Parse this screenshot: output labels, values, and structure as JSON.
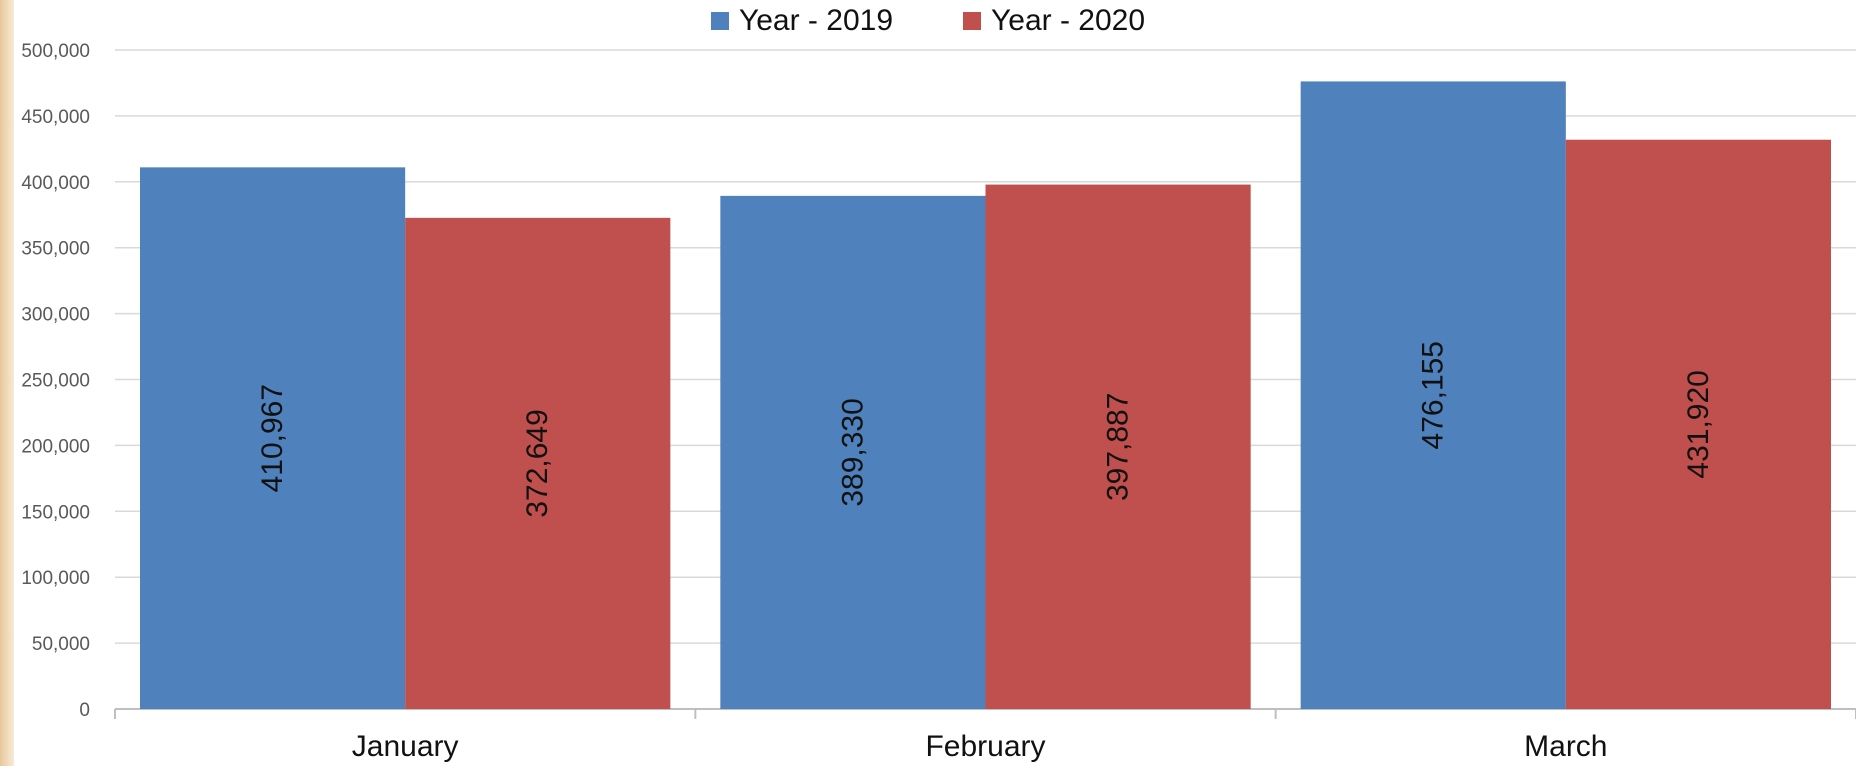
{
  "chart_data": {
    "type": "bar",
    "categories": [
      "January",
      "February",
      "March"
    ],
    "series": [
      {
        "name": "Year - 2019",
        "values": [
          410967,
          389330,
          476155
        ],
        "labels": [
          "410,967",
          "389,330",
          "476,155"
        ],
        "color": "#4f81bd"
      },
      {
        "name": "Year - 2020",
        "values": [
          372649,
          397887,
          431920
        ],
        "labels": [
          "372,649",
          "397,887",
          "431,920"
        ],
        "color": "#c0504d"
      }
    ],
    "ylim": [
      0,
      500000
    ],
    "yticks": [
      0,
      50000,
      100000,
      150000,
      200000,
      250000,
      300000,
      350000,
      400000,
      450000,
      500000
    ],
    "ytick_labels": [
      "0",
      "50,000",
      "100,000",
      "150,000",
      "200,000",
      "250,000",
      "300,000",
      "350,000",
      "400,000",
      "450,000",
      "500,000"
    ],
    "grid": true,
    "legend_position": "top-center",
    "colors": {
      "gridline": "#d9d9d9",
      "axis": "#bfbfbf"
    }
  }
}
